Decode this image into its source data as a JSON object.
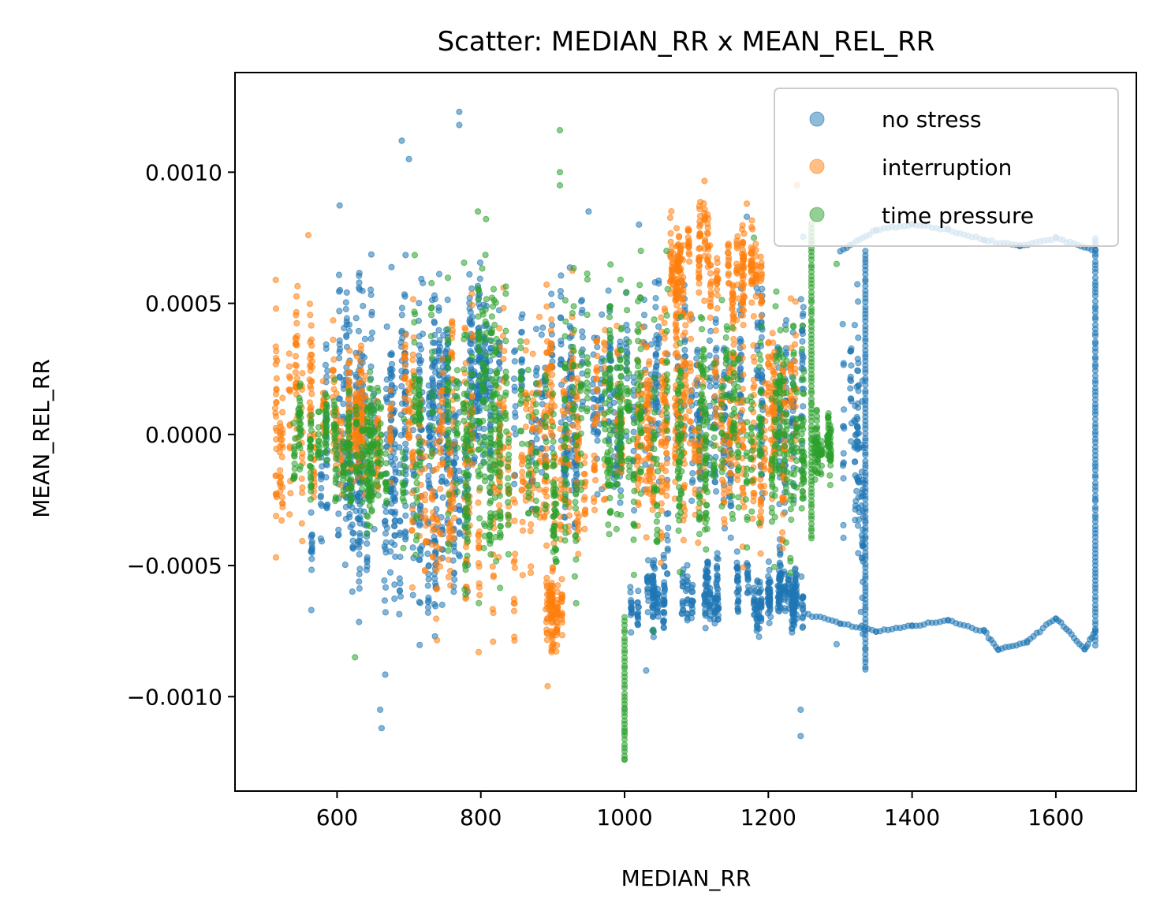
{
  "chart_data": {
    "type": "scatter",
    "title": "Scatter: MEDIAN_RR x MEAN_REL_RR",
    "xlabel": "MEDIAN_RR",
    "ylabel": "MEAN_REL_RR",
    "xlim": [
      458,
      1712
    ],
    "ylim": [
      -0.00136,
      0.00138
    ],
    "x_ticks": [
      600,
      800,
      1000,
      1200,
      1400,
      1600
    ],
    "x_tick_labels": [
      "600",
      "800",
      "1000",
      "1200",
      "1400",
      "1600"
    ],
    "y_ticks": [
      0.001,
      0.0005,
      0.0,
      -0.0005,
      -0.001
    ],
    "y_tick_labels": [
      "0.0010",
      "0.0005",
      "0.0000",
      "−0.0005",
      "−0.0010"
    ],
    "grid": false,
    "legend_position": "top-right",
    "series": [
      {
        "name": "no stress",
        "color": "#1f77b4",
        "clusters": [
          {
            "x": [
              560,
              640
            ],
            "y": [
              -0.0008,
              0.0005
            ]
          },
          {
            "x": [
              600,
              720
            ],
            "y": [
              -0.0009,
              0.0009
            ]
          },
          {
            "x": [
              660,
              770
            ],
            "y": [
              -0.001,
              0.0007
            ]
          },
          {
            "x": [
              720,
              1250
            ],
            "y": [
              -0.0006,
              0.0008
            ]
          },
          {
            "x": [
              1000,
              1250
            ],
            "y": [
              -0.0008,
              -0.0004
            ]
          },
          {
            "x": [
              1300,
              1335
            ],
            "y": [
              -0.0009,
              0.0007
            ]
          }
        ],
        "paths": [
          [
            [
              1250,
              -0.00068
            ],
            [
              1300,
              -0.00072
            ],
            [
              1350,
              -0.00075
            ],
            [
              1400,
              -0.00073
            ],
            [
              1450,
              -0.00071
            ],
            [
              1500,
              -0.00075
            ],
            [
              1520,
              -0.00082
            ],
            [
              1560,
              -0.00079
            ],
            [
              1600,
              -0.0007
            ],
            [
              1640,
              -0.00082
            ],
            [
              1655,
              -0.00075
            ]
          ],
          [
            [
              1300,
              0.0007
            ],
            [
              1350,
              0.00078
            ],
            [
              1400,
              0.0008
            ],
            [
              1450,
              0.00078
            ],
            [
              1500,
              0.00074
            ],
            [
              1550,
              0.00072
            ],
            [
              1600,
              0.00075
            ],
            [
              1655,
              0.0007
            ]
          ],
          [
            [
              1655,
              -0.0008
            ],
            [
              1655,
              0.00075
            ]
          ],
          [
            [
              1335,
              -0.0009
            ],
            [
              1335,
              0.0007
            ]
          ]
        ],
        "outliers": [
          [
            770,
            0.00123
          ],
          [
            770,
            0.00118
          ],
          [
            690,
            0.00112
          ],
          [
            700,
            0.00105
          ],
          [
            662,
            -0.00112
          ],
          [
            660,
            -0.00105
          ],
          [
            1245,
            -0.00115
          ],
          [
            1245,
            -0.00105
          ],
          [
            1030,
            -0.0009
          ],
          [
            1295,
            -0.0008
          ],
          [
            1330,
            -0.00073
          ],
          [
            950,
            0.00085
          ],
          [
            1020,
            0.0008
          ],
          [
            1170,
            0.00083
          ]
        ]
      },
      {
        "name": "interruption",
        "color": "#ff7f0e",
        "clusters": [
          {
            "x": [
              515,
              555
            ],
            "y": [
              -0.00065,
              0.00075
            ]
          },
          {
            "x": [
              560,
              700
            ],
            "y": [
              -0.0004,
              0.0005
            ]
          },
          {
            "x": [
              700,
              900
            ],
            "y": [
              -0.0009,
              0.00075
            ]
          },
          {
            "x": [
              880,
              920
            ],
            "y": [
              -0.00095,
              -0.0004
            ]
          },
          {
            "x": [
              900,
              1100
            ],
            "y": [
              -0.0006,
              0.00065
            ]
          },
          {
            "x": [
              1050,
              1200
            ],
            "y": [
              0.0003,
              0.001
            ]
          },
          {
            "x": [
              1080,
              1240
            ],
            "y": [
              -0.0006,
              0.0006
            ]
          }
        ],
        "paths": [],
        "outliers": [
          [
            893,
            -0.00096
          ],
          [
            797,
            -0.00083
          ],
          [
            560,
            0.00076
          ],
          [
            1240,
            0.00095
          ],
          [
            1170,
            0.00088
          ]
        ]
      },
      {
        "name": "time pressure",
        "color": "#2ca02c",
        "clusters": [
          {
            "x": [
              540,
              600
            ],
            "y": [
              -0.0004,
              0.0003
            ]
          },
          {
            "x": [
              600,
              700
            ],
            "y": [
              -0.0005,
              0.0003
            ]
          },
          {
            "x": [
              700,
              1000
            ],
            "y": [
              -0.0008,
              0.00085
            ]
          },
          {
            "x": [
              1000,
              1250
            ],
            "y": [
              -0.0007,
              0.0007
            ]
          },
          {
            "x": [
              1250,
              1290
            ],
            "y": [
              -0.00025,
              0.00015
            ]
          }
        ],
        "paths": [
          [
            [
              1260,
              0.0008
            ],
            [
              1260,
              -0.0004
            ]
          ],
          [
            [
              1000,
              -0.0007
            ],
            [
              1000,
              -0.00124
            ]
          ]
        ],
        "outliers": [
          [
            910,
            0.00116
          ],
          [
            910,
            0.001
          ],
          [
            910,
            0.00095
          ],
          [
            1000,
            -0.00124
          ],
          [
            1000,
            -0.00113
          ],
          [
            1000,
            -0.00105
          ],
          [
            1295,
            0.00065
          ],
          [
            1180,
            0.00075
          ],
          [
            625,
            -0.00085
          ],
          [
            1040,
            -0.00075
          ]
        ]
      }
    ]
  }
}
